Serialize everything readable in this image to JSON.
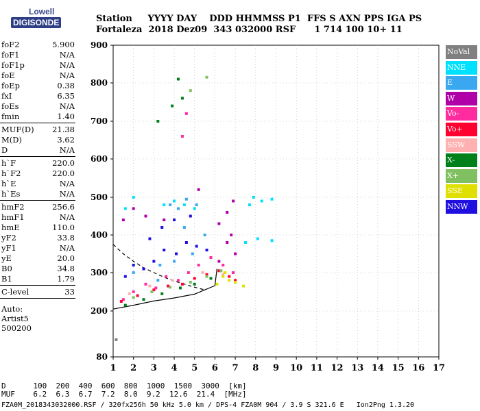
{
  "logo": {
    "line1": "Lowell",
    "line2": "DIGISONDE"
  },
  "header": {
    "line1": "Station     YYYY DAY    DDD HHMMSS P1  FFS S AXN PPS IGA PS",
    "line2": "Fortaleza  2018 Dez09  343 032000 RSF      1 714 100 10+ 11"
  },
  "params": {
    "group1": [
      {
        "k": "foF2",
        "v": "5.900"
      },
      {
        "k": "foF1",
        "v": "N/A"
      },
      {
        "k": "foF1p",
        "v": "N/A"
      },
      {
        "k": "foE",
        "v": "N/A"
      },
      {
        "k": "foEp",
        "v": "0.38"
      },
      {
        "k": "fxI",
        "v": "6.35"
      },
      {
        "k": "foEs",
        "v": "N/A"
      },
      {
        "k": "fmin",
        "v": "1.40"
      }
    ],
    "group2": [
      {
        "k": "MUF(D)",
        "v": "21.38"
      },
      {
        "k": "M(D)",
        "v": "3.62"
      },
      {
        "k": "D",
        "v": "N/A"
      }
    ],
    "group3": [
      {
        "k": "h`F",
        "v": "220.0"
      },
      {
        "k": "h`F2",
        "v": "220.0"
      },
      {
        "k": "h`E",
        "v": "N/A"
      },
      {
        "k": "h`Es",
        "v": "N/A"
      }
    ],
    "group4": [
      {
        "k": "hmF2",
        "v": "256.6"
      },
      {
        "k": "hmF1",
        "v": "N/A"
      },
      {
        "k": "hmE",
        "v": "110.0"
      },
      {
        "k": "yF2",
        "v": "33.8"
      },
      {
        "k": "yF1",
        "v": "N/A"
      },
      {
        "k": "yE",
        "v": "20.0"
      },
      {
        "k": "B0",
        "v": "34.8"
      },
      {
        "k": "B1",
        "v": "1.79"
      }
    ],
    "group5": [
      {
        "k": "C-level",
        "v": "33"
      }
    ],
    "auto": [
      "Auto:",
      "Artist5",
      "500200"
    ]
  },
  "legend": [
    {
      "label": "NoVal",
      "color": "#808080"
    },
    {
      "label": "NNE",
      "color": "#00e0ff"
    },
    {
      "label": "E",
      "color": "#3aa8f0"
    },
    {
      "label": "W",
      "color": "#b000a8"
    },
    {
      "label": "Vo-",
      "color": "#ff2ca0"
    },
    {
      "label": "Vo+",
      "color": "#ff0030"
    },
    {
      "label": "SSW",
      "color": "#ffb0b0"
    },
    {
      "label": "X-",
      "color": "#00801a"
    },
    {
      "label": "X+",
      "color": "#80c060"
    },
    {
      "label": "SSE",
      "color": "#e0e000"
    },
    {
      "label": "NNW",
      "color": "#2010e0"
    }
  ],
  "footer": {
    "d_line": "D      100  200  400  600  800  1000  1500  3000  [km]",
    "muf_line": "MUF    6.2  6.3  6.7  7.2  8.0  9.2  12.6  21.4  [MHz]",
    "info": "FZA0M_2018343032000.RSF / 320fx256h 50 kHz 5.0 km / DPS-4 FZA0M 904 / 3.9 S 321.6 E   Ion2Png 1.3.20"
  },
  "chart_data": {
    "type": "scatter",
    "xlim": [
      1,
      17
    ],
    "ylim": [
      80,
      900
    ],
    "xticks": [
      "1",
      "2",
      "3",
      "4",
      "5",
      "6",
      "7",
      "8",
      "9",
      "10",
      "11",
      "12",
      "13",
      "14",
      "15",
      "16",
      "17"
    ],
    "yticks": [
      "80",
      "200",
      "300",
      "400",
      "500",
      "600",
      "700",
      "800",
      "900"
    ],
    "ytick_values": [
      80,
      200,
      300,
      400,
      500,
      600,
      700,
      800,
      900
    ],
    "grid": true,
    "series": [
      {
        "name": "NoVal",
        "points": [
          [
            1.15,
            125
          ]
        ]
      },
      {
        "name": "NNE",
        "points": [
          [
            1.6,
            470
          ],
          [
            2.0,
            500
          ],
          [
            3.5,
            480
          ],
          [
            4.0,
            490
          ],
          [
            4.5,
            480
          ],
          [
            5.0,
            470
          ],
          [
            7.7,
            480
          ],
          [
            7.9,
            500
          ],
          [
            8.3,
            490
          ],
          [
            8.8,
            495
          ],
          [
            7.5,
            380
          ],
          [
            8.1,
            390
          ],
          [
            8.8,
            385
          ]
        ]
      },
      {
        "name": "E",
        "points": [
          [
            2.0,
            300
          ],
          [
            2.5,
            310
          ],
          [
            3.3,
            320
          ],
          [
            3.8,
            480
          ],
          [
            4.2,
            470
          ],
          [
            4.6,
            495
          ],
          [
            5.1,
            480
          ],
          [
            4.5,
            420
          ],
          [
            4.9,
            350
          ],
          [
            5.5,
            400
          ],
          [
            3.2,
            280
          ],
          [
            4.0,
            330
          ]
        ]
      },
      {
        "name": "W",
        "points": [
          [
            1.5,
            440
          ],
          [
            2.0,
            470
          ],
          [
            2.6,
            450
          ],
          [
            3.5,
            440
          ],
          [
            5.2,
            520
          ],
          [
            6.2,
            430
          ],
          [
            6.6,
            380
          ],
          [
            6.2,
            330
          ],
          [
            6.8,
            400
          ],
          [
            7.0,
            350
          ],
          [
            6.9,
            300
          ],
          [
            6.6,
            460
          ],
          [
            6.9,
            490
          ]
        ]
      },
      {
        "name": "Vo-",
        "points": [
          [
            1.5,
            230
          ],
          [
            2.0,
            250
          ],
          [
            2.6,
            270
          ],
          [
            3.1,
            260
          ],
          [
            3.6,
            290
          ],
          [
            4.2,
            280
          ],
          [
            4.7,
            300
          ],
          [
            5.2,
            320
          ],
          [
            5.8,
            340
          ],
          [
            6.4,
            320
          ],
          [
            6.9,
            300
          ],
          [
            4.4,
            660
          ],
          [
            4.6,
            720
          ]
        ]
      },
      {
        "name": "Vo+",
        "points": [
          [
            1.4,
            225
          ],
          [
            2.2,
            240
          ],
          [
            3.0,
            255
          ],
          [
            3.7,
            265
          ],
          [
            4.4,
            270
          ],
          [
            5.0,
            285
          ],
          [
            5.6,
            295
          ],
          [
            6.2,
            305
          ],
          [
            6.7,
            290
          ],
          [
            7.0,
            280
          ]
        ]
      },
      {
        "name": "SSW",
        "points": [
          [
            1.8,
            245
          ],
          [
            2.8,
            265
          ],
          [
            3.9,
            280
          ],
          [
            5.4,
            300
          ],
          [
            6.4,
            295
          ]
        ]
      },
      {
        "name": "X-",
        "points": [
          [
            1.6,
            215
          ],
          [
            2.5,
            230
          ],
          [
            3.4,
            245
          ],
          [
            4.3,
            260
          ],
          [
            5.0,
            270
          ],
          [
            5.8,
            285
          ],
          [
            3.2,
            700
          ],
          [
            3.9,
            740
          ],
          [
            4.4,
            760
          ],
          [
            4.2,
            810
          ]
        ]
      },
      {
        "name": "X+",
        "points": [
          [
            2.0,
            235
          ],
          [
            2.9,
            250
          ],
          [
            3.8,
            262
          ],
          [
            4.8,
            275
          ],
          [
            5.6,
            290
          ],
          [
            6.3,
            305
          ],
          [
            4.8,
            780
          ],
          [
            5.6,
            815
          ]
        ]
      },
      {
        "name": "SSE",
        "points": [
          [
            6.1,
            270
          ],
          [
            6.4,
            290
          ],
          [
            6.7,
            280
          ],
          [
            7.0,
            275
          ],
          [
            7.4,
            265
          ],
          [
            6.5,
            300
          ]
        ]
      },
      {
        "name": "NNW",
        "points": [
          [
            1.6,
            290
          ],
          [
            2.0,
            320
          ],
          [
            2.5,
            310
          ],
          [
            3.0,
            330
          ],
          [
            3.5,
            360
          ],
          [
            4.1,
            350
          ],
          [
            4.6,
            380
          ],
          [
            5.1,
            370
          ],
          [
            5.6,
            360
          ],
          [
            2.8,
            390
          ],
          [
            3.4,
            420
          ],
          [
            4.0,
            440
          ],
          [
            4.8,
            450
          ]
        ]
      }
    ],
    "profile_lines": [
      {
        "style": "solid",
        "points": [
          [
            1.0,
            205
          ],
          [
            2.0,
            215
          ],
          [
            3.0,
            226
          ],
          [
            4.0,
            234
          ],
          [
            5.0,
            244
          ],
          [
            5.5,
            255
          ],
          [
            6.0,
            266
          ],
          [
            6.1,
            310
          ]
        ]
      },
      {
        "style": "dashed",
        "points": [
          [
            1.0,
            375
          ],
          [
            1.5,
            350
          ],
          [
            2.0,
            330
          ],
          [
            2.5,
            313
          ],
          [
            3.0,
            300
          ],
          [
            3.5,
            288
          ],
          [
            4.0,
            278
          ],
          [
            4.5,
            270
          ],
          [
            5.0,
            262
          ],
          [
            5.5,
            255
          ]
        ]
      }
    ]
  }
}
